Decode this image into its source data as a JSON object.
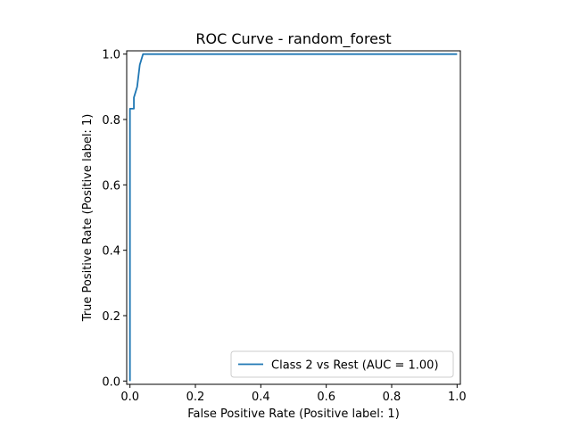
{
  "chart_data": {
    "type": "line",
    "title": "ROC Curve - random_forest",
    "xlabel": "False Positive Rate (Positive label: 1)",
    "ylabel": "True Positive Rate (Positive label: 1)",
    "xlim": [
      -0.01,
      1.01
    ],
    "ylim": [
      -0.01,
      1.01
    ],
    "xticks": [
      0.0,
      0.2,
      0.4,
      0.6,
      0.8,
      1.0
    ],
    "yticks": [
      0.0,
      0.2,
      0.4,
      0.6,
      0.8,
      1.0
    ],
    "xtick_labels": [
      "0.0",
      "0.2",
      "0.4",
      "0.6",
      "0.8",
      "1.0"
    ],
    "ytick_labels": [
      "0.0",
      "0.2",
      "0.4",
      "0.6",
      "0.8",
      "1.0"
    ],
    "grid": false,
    "legend_position": "lower-right",
    "series": [
      {
        "name": "Class 2 vs Rest (AUC = 1.00)",
        "color": "#1f77b4",
        "x": [
          0.0,
          0.0,
          0.0,
          0.012,
          0.012,
          0.022,
          0.022,
          0.03,
          0.03,
          0.04,
          0.04,
          1.0
        ],
        "y": [
          0.0,
          0.833,
          0.833,
          0.833,
          0.867,
          0.9,
          0.9,
          0.967,
          0.967,
          1.0,
          1.0,
          1.0
        ]
      }
    ]
  }
}
